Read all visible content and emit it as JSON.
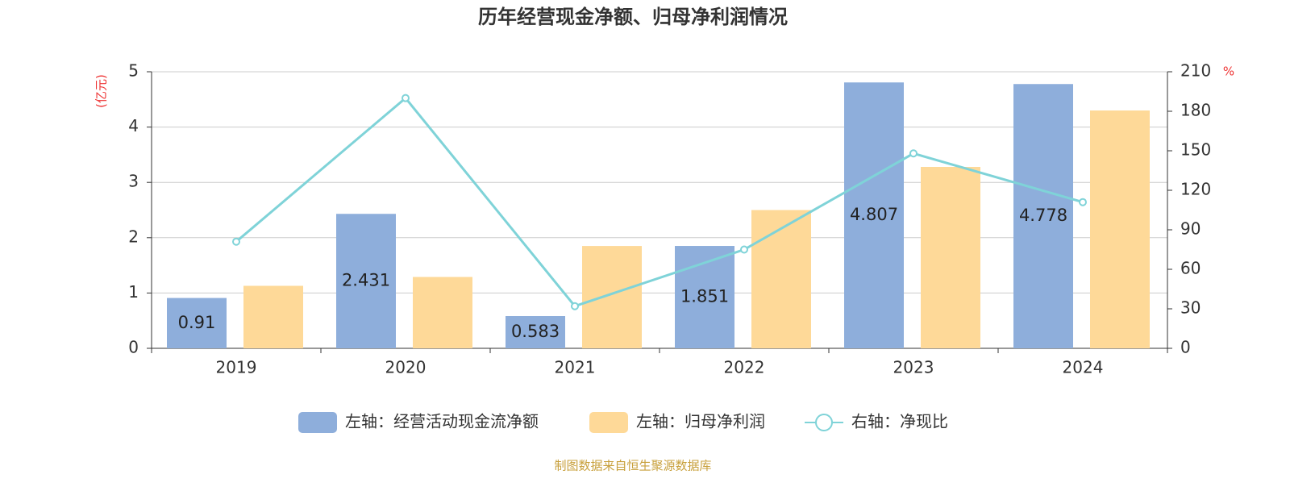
{
  "chart_data": {
    "type": "bar",
    "title": "历年经营现金净额、归母净利润情况",
    "y_unit": "(亿元)",
    "y2_unit": "%",
    "source": "制图数据来自恒生聚源数据库",
    "categories": [
      "2019",
      "2020",
      "2021",
      "2022",
      "2023",
      "2024"
    ],
    "series": [
      {
        "name": "左轴：经营活动现金流净额",
        "type": "bar",
        "color": "#8eaedb",
        "values": [
          0.91,
          2.431,
          0.583,
          1.851,
          4.807,
          4.778
        ],
        "show_labels": true
      },
      {
        "name": "左轴：归母净利润",
        "type": "bar",
        "color": "#fed998",
        "values": [
          1.13,
          1.29,
          1.85,
          2.5,
          3.28,
          4.3
        ]
      },
      {
        "name": "右轴：净现比",
        "type": "line",
        "axis": "y2",
        "color": "#7fd3d8",
        "values": [
          81,
          190,
          32,
          75,
          148,
          111
        ]
      }
    ],
    "ylim": [
      0,
      5
    ],
    "yticks": [
      0,
      1,
      2,
      3,
      4,
      5
    ],
    "y2lim": [
      0,
      210
    ],
    "y2ticks": [
      0,
      30,
      60,
      90,
      120,
      150,
      180,
      210
    ],
    "grid": true
  }
}
